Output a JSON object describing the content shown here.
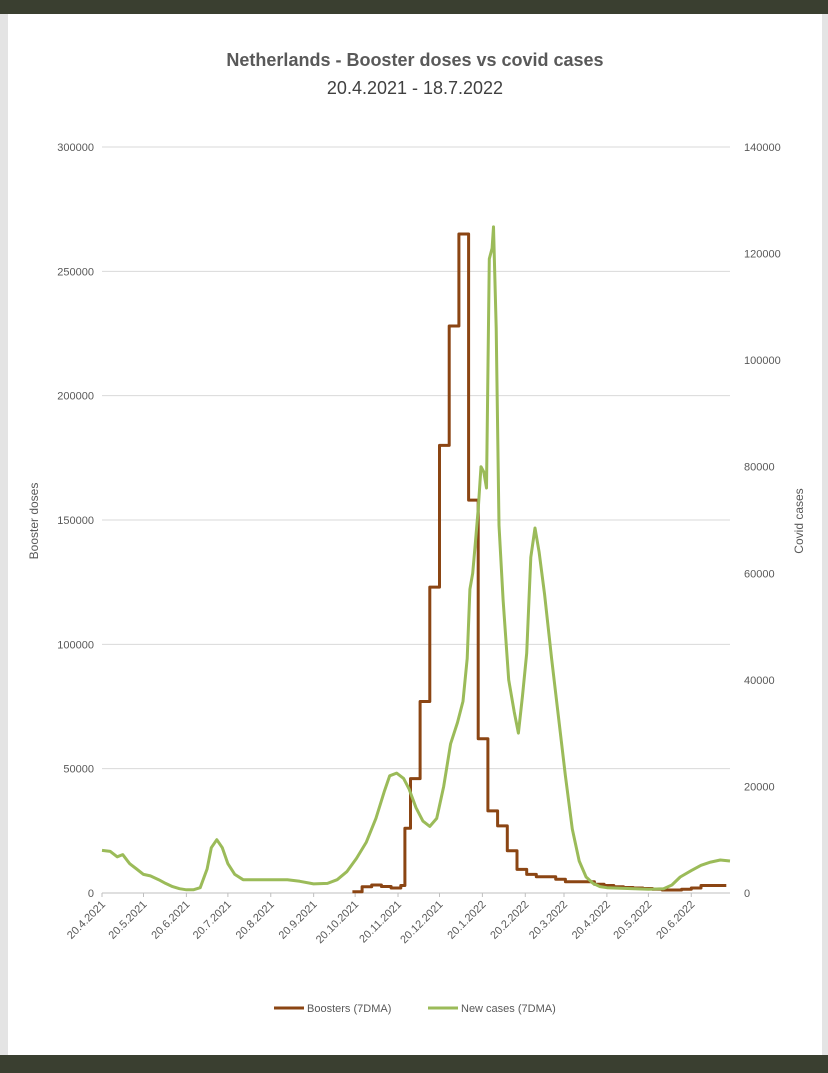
{
  "colors": {
    "boosters": "#8b4513",
    "cases": "#9bbb59",
    "grid": "#d9d9d9",
    "text": "#595959",
    "frame": "#3a3f30"
  },
  "chart_data": {
    "type": "line",
    "title": "Netherlands - Booster doses vs covid cases",
    "subtitle": "20.4.2021 - 18.7.2022",
    "ylabel": "Booster doses",
    "y2label": "Covid cases",
    "ylim": [
      0,
      300000
    ],
    "y2lim": [
      0,
      140000
    ],
    "yticks": [
      "0",
      "50000",
      "100000",
      "150000",
      "200000",
      "250000",
      "300000"
    ],
    "y2ticks": [
      "0",
      "20000",
      "40000",
      "60000",
      "80000",
      "100000",
      "120000",
      "140000"
    ],
    "xrange": [
      "2021-04-20",
      "2022-07-18"
    ],
    "xticks": [
      "20.4.2021",
      "20.5.2021",
      "20.6.2021",
      "20.7.2021",
      "20.8.2021",
      "20.9.2021",
      "20.10.2021",
      "20.11.2021",
      "20.12.2021",
      "20.1.2022",
      "20.2.2022",
      "20.3.2022",
      "20.4.2022",
      "20.5.2022",
      "20.6.2022"
    ],
    "grid": true,
    "legend": "bottom",
    "series": [
      {
        "name": "Boosters (7DMA)",
        "axis": "left",
        "color": "#8b4513",
        "step": true,
        "points": [
          [
            "2021-10-18",
            500
          ],
          [
            "2021-10-25",
            2500
          ],
          [
            "2021-11-01",
            3200
          ],
          [
            "2021-11-08",
            2600
          ],
          [
            "2021-11-15",
            2000
          ],
          [
            "2021-11-22",
            3000
          ],
          [
            "2021-11-25",
            26000
          ],
          [
            "2021-11-29",
            46000
          ],
          [
            "2021-12-06",
            77000
          ],
          [
            "2021-12-13",
            123000
          ],
          [
            "2021-12-20",
            180000
          ],
          [
            "2021-12-27",
            228000
          ],
          [
            "2022-01-03",
            265000
          ],
          [
            "2022-01-10",
            158000
          ],
          [
            "2022-01-17",
            62000
          ],
          [
            "2022-01-24",
            33000
          ],
          [
            "2022-01-31",
            27000
          ],
          [
            "2022-02-07",
            17000
          ],
          [
            "2022-02-14",
            9500
          ],
          [
            "2022-02-21",
            7500
          ],
          [
            "2022-02-28",
            6500
          ],
          [
            "2022-03-07",
            6500
          ],
          [
            "2022-03-14",
            5500
          ],
          [
            "2022-03-21",
            4500
          ],
          [
            "2022-03-28",
            4500
          ],
          [
            "2022-04-04",
            4500
          ],
          [
            "2022-04-11",
            3500
          ],
          [
            "2022-04-18",
            3000
          ],
          [
            "2022-04-25",
            2500
          ],
          [
            "2022-05-02",
            2200
          ],
          [
            "2022-05-09",
            2000
          ],
          [
            "2022-05-16",
            1800
          ],
          [
            "2022-05-23",
            1500
          ],
          [
            "2022-05-30",
            1200
          ],
          [
            "2022-06-06",
            1200
          ],
          [
            "2022-06-13",
            1500
          ],
          [
            "2022-06-20",
            2000
          ],
          [
            "2022-06-27",
            3000
          ],
          [
            "2022-07-04",
            3000
          ],
          [
            "2022-07-11",
            3000
          ]
        ]
      },
      {
        "name": "New cases (7DMA)",
        "axis": "right",
        "color": "#9bbb59",
        "step": false,
        "points": [
          [
            "2021-04-20",
            8000
          ],
          [
            "2021-04-26",
            7800
          ],
          [
            "2021-05-01",
            6800
          ],
          [
            "2021-05-05",
            7200
          ],
          [
            "2021-05-10",
            5500
          ],
          [
            "2021-05-15",
            4500
          ],
          [
            "2021-05-20",
            3500
          ],
          [
            "2021-05-25",
            3200
          ],
          [
            "2021-05-31",
            2500
          ],
          [
            "2021-06-05",
            1800
          ],
          [
            "2021-06-10",
            1200
          ],
          [
            "2021-06-15",
            800
          ],
          [
            "2021-06-20",
            600
          ],
          [
            "2021-06-25",
            600
          ],
          [
            "2021-06-30",
            1000
          ],
          [
            "2021-07-05",
            4500
          ],
          [
            "2021-07-08",
            8500
          ],
          [
            "2021-07-12",
            10000
          ],
          [
            "2021-07-16",
            8500
          ],
          [
            "2021-07-20",
            5500
          ],
          [
            "2021-07-25",
            3500
          ],
          [
            "2021-07-31",
            2500
          ],
          [
            "2021-08-10",
            2500
          ],
          [
            "2021-08-20",
            2500
          ],
          [
            "2021-09-01",
            2500
          ],
          [
            "2021-09-10",
            2200
          ],
          [
            "2021-09-20",
            1700
          ],
          [
            "2021-09-30",
            1800
          ],
          [
            "2021-10-07",
            2500
          ],
          [
            "2021-10-14",
            4000
          ],
          [
            "2021-10-21",
            6500
          ],
          [
            "2021-10-28",
            9500
          ],
          [
            "2021-11-04",
            14000
          ],
          [
            "2021-11-10",
            19000
          ],
          [
            "2021-11-14",
            22000
          ],
          [
            "2021-11-19",
            22500
          ],
          [
            "2021-11-24",
            21500
          ],
          [
            "2021-11-28",
            19500
          ],
          [
            "2021-12-03",
            16000
          ],
          [
            "2021-12-08",
            13500
          ],
          [
            "2021-12-13",
            12500
          ],
          [
            "2021-12-18",
            14000
          ],
          [
            "2021-12-23",
            20000
          ],
          [
            "2021-12-28",
            28000
          ],
          [
            "2022-01-02",
            32000
          ],
          [
            "2022-01-06",
            36000
          ],
          [
            "2022-01-09",
            44000
          ],
          [
            "2022-01-11",
            57000
          ],
          [
            "2022-01-13",
            60000
          ],
          [
            "2022-01-15",
            66000
          ],
          [
            "2022-01-17",
            72000
          ],
          [
            "2022-01-19",
            80000
          ],
          [
            "2022-01-21",
            79000
          ],
          [
            "2022-01-23",
            76000
          ],
          [
            "2022-01-25",
            119000
          ],
          [
            "2022-01-27",
            121000
          ],
          [
            "2022-01-28",
            125000
          ],
          [
            "2022-01-30",
            106000
          ],
          [
            "2022-02-01",
            69000
          ],
          [
            "2022-02-04",
            55000
          ],
          [
            "2022-02-08",
            40000
          ],
          [
            "2022-02-12",
            34000
          ],
          [
            "2022-02-15",
            30000
          ],
          [
            "2022-02-18",
            37000
          ],
          [
            "2022-02-21",
            45000
          ],
          [
            "2022-02-24",
            63000
          ],
          [
            "2022-02-27",
            68500
          ],
          [
            "2022-03-02",
            64000
          ],
          [
            "2022-03-06",
            56000
          ],
          [
            "2022-03-11",
            44000
          ],
          [
            "2022-03-16",
            33000
          ],
          [
            "2022-03-21",
            22000
          ],
          [
            "2022-03-26",
            12000
          ],
          [
            "2022-03-31",
            6000
          ],
          [
            "2022-04-05",
            3000
          ],
          [
            "2022-04-10",
            1800
          ],
          [
            "2022-04-15",
            1200
          ],
          [
            "2022-04-20",
            1000
          ],
          [
            "2022-04-30",
            900
          ],
          [
            "2022-05-10",
            800
          ],
          [
            "2022-05-20",
            700
          ],
          [
            "2022-05-31",
            800
          ],
          [
            "2022-06-06",
            1500
          ],
          [
            "2022-06-12",
            3000
          ],
          [
            "2022-06-20",
            4200
          ],
          [
            "2022-06-27",
            5200
          ],
          [
            "2022-07-04",
            5800
          ],
          [
            "2022-07-11",
            6200
          ],
          [
            "2022-07-18",
            6000
          ]
        ]
      }
    ]
  }
}
